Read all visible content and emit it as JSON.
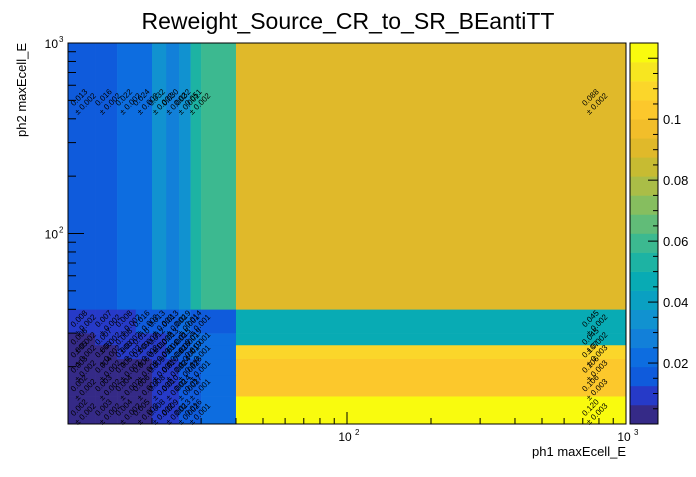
{
  "chart_data": {
    "type": "heatmap",
    "title": "Reweight_Source_CR_to_SR_BEantiTT",
    "xlabel": "ph1 maxEcell_E",
    "ylabel": "ph2 maxEcell_E",
    "x_scale": "log",
    "y_scale": "log",
    "xlim": [
      10,
      1000
    ],
    "ylim": [
      10,
      1000
    ],
    "x_ticks": [
      {
        "value": 100,
        "label": "10",
        "exp": "2"
      },
      {
        "value": 1000,
        "label": "10",
        "exp": "3"
      }
    ],
    "y_ticks": [
      {
        "value": 100,
        "label": "10",
        "exp": "2"
      },
      {
        "value": 1000,
        "label": "10",
        "exp": "3"
      }
    ],
    "zlim": [
      0,
      0.125
    ],
    "z_ticks": [
      {
        "value": 0.02,
        "label": "0.02"
      },
      {
        "value": 0.04,
        "label": "0.04"
      },
      {
        "value": 0.06,
        "label": "0.06"
      },
      {
        "value": 0.08,
        "label": "0.08"
      },
      {
        "value": 0.1,
        "label": "0.1"
      }
    ],
    "x_edges": [
      10,
      12.5,
      15,
      17.5,
      20,
      22.5,
      25,
      27.5,
      30,
      40,
      1000
    ],
    "y_edges": [
      10,
      14,
      18,
      22,
      26,
      30,
      40,
      1000
    ],
    "cells": [
      {
        "xi": 0,
        "yi": 0,
        "v": 0.002,
        "e": 0.002
      },
      {
        "xi": 1,
        "yi": 0,
        "v": 0.003,
        "e": 0.002
      },
      {
        "xi": 2,
        "yi": 0,
        "v": 0.004,
        "e": 0.002
      },
      {
        "xi": 3,
        "yi": 0,
        "v": 0.005,
        "e": 0.002
      },
      {
        "xi": 4,
        "yi": 0,
        "v": 0.008,
        "e": 0.002
      },
      {
        "xi": 5,
        "yi": 0,
        "v": 0.009,
        "e": 0.002
      },
      {
        "xi": 6,
        "yi": 0,
        "v": 0.013,
        "e": 0.002
      },
      {
        "xi": 7,
        "yi": 0,
        "v": 0.016,
        "e": 0.001
      },
      {
        "xi": 8,
        "yi": 0,
        "v": 0.022,
        "e": 0.001
      },
      {
        "xi": 9,
        "yi": 0,
        "v": 0.12,
        "e": 0.003
      },
      {
        "xi": 0,
        "yi": 1,
        "v": 0.002,
        "e": 0.002
      },
      {
        "xi": 1,
        "yi": 1,
        "v": 0.003,
        "e": 0.002
      },
      {
        "xi": 2,
        "yi": 1,
        "v": 0.004,
        "e": 0.002
      },
      {
        "xi": 3,
        "yi": 1,
        "v": 0.006,
        "e": 0.002
      },
      {
        "xi": 4,
        "yi": 1,
        "v": 0.008,
        "e": 0.002
      },
      {
        "xi": 5,
        "yi": 1,
        "v": 0.01,
        "e": 0.002
      },
      {
        "xi": 6,
        "yi": 1,
        "v": 0.014,
        "e": 0.002
      },
      {
        "xi": 7,
        "yi": 1,
        "v": 0.017,
        "e": 0.001
      },
      {
        "xi": 8,
        "yi": 1,
        "v": 0.022,
        "e": 0.001
      },
      {
        "xi": 9,
        "yi": 1,
        "v": 0.106,
        "e": 0.003
      },
      {
        "xi": 0,
        "yi": 2,
        "v": 0.003,
        "e": 0.002
      },
      {
        "xi": 1,
        "yi": 2,
        "v": 0.004,
        "e": 0.002
      },
      {
        "xi": 2,
        "yi": 2,
        "v": 0.005,
        "e": 0.002
      },
      {
        "xi": 3,
        "yi": 2,
        "v": 0.006,
        "e": 0.002
      },
      {
        "xi": 4,
        "yi": 2,
        "v": 0.009,
        "e": 0.002
      },
      {
        "xi": 5,
        "yi": 2,
        "v": 0.01,
        "e": 0.002
      },
      {
        "xi": 6,
        "yi": 2,
        "v": 0.014,
        "e": 0.002
      },
      {
        "xi": 7,
        "yi": 2,
        "v": 0.018,
        "e": 0.001
      },
      {
        "xi": 8,
        "yi": 2,
        "v": 0.02,
        "e": 0.001
      },
      {
        "xi": 9,
        "yi": 2,
        "v": 0.106,
        "e": 0.003
      },
      {
        "xi": 0,
        "yi": 3,
        "v": 0.005,
        "e": 0.002
      },
      {
        "xi": 1,
        "yi": 3,
        "v": 0.006,
        "e": 0.002
      },
      {
        "xi": 2,
        "yi": 3,
        "v": 0.008,
        "e": 0.002
      },
      {
        "xi": 3,
        "yi": 3,
        "v": 0.009,
        "e": 0.002
      },
      {
        "xi": 4,
        "yi": 3,
        "v": 0.011,
        "e": 0.002
      },
      {
        "xi": 5,
        "yi": 3,
        "v": 0.014,
        "e": 0.002
      },
      {
        "xi": 6,
        "yi": 3,
        "v": 0.016,
        "e": 0.001
      },
      {
        "xi": 7,
        "yi": 3,
        "v": 0.019,
        "e": 0.001
      },
      {
        "xi": 8,
        "yi": 3,
        "v": 0.022,
        "e": 0.001
      },
      {
        "xi": 9,
        "yi": 3,
        "v": 0.107,
        "e": 0.003
      },
      {
        "xi": 0,
        "yi": 4,
        "v": 0.006,
        "e": 0.002
      },
      {
        "xi": 1,
        "yi": 4,
        "v": 0.007,
        "e": 0.002
      },
      {
        "xi": 2,
        "yi": 4,
        "v": 0.008,
        "e": 0.002
      },
      {
        "xi": 3,
        "yi": 4,
        "v": 0.01,
        "e": 0.002
      },
      {
        "xi": 4,
        "yi": 4,
        "v": 0.012,
        "e": 0.002
      },
      {
        "xi": 5,
        "yi": 4,
        "v": 0.013,
        "e": 0.002
      },
      {
        "xi": 6,
        "yi": 4,
        "v": 0.015,
        "e": 0.001
      },
      {
        "xi": 7,
        "yi": 4,
        "v": 0.019,
        "e": 0.001
      },
      {
        "xi": 8,
        "yi": 4,
        "v": 0.022,
        "e": 0.001
      },
      {
        "xi": 9,
        "yi": 4,
        "v": 0.045,
        "e": 0.002
      },
      {
        "xi": 0,
        "yi": 5,
        "v": 0.008,
        "e": 0.002
      },
      {
        "xi": 1,
        "yi": 5,
        "v": 0.007,
        "e": 0.002
      },
      {
        "xi": 2,
        "yi": 5,
        "v": 0.008,
        "e": 0.002
      },
      {
        "xi": 3,
        "yi": 5,
        "v": 0.016,
        "e": 0.002
      },
      {
        "xi": 4,
        "yi": 5,
        "v": 0.013,
        "e": 0.002
      },
      {
        "xi": 5,
        "yi": 5,
        "v": 0.013,
        "e": 0.002
      },
      {
        "xi": 6,
        "yi": 5,
        "v": 0.019,
        "e": 0.001
      },
      {
        "xi": 7,
        "yi": 5,
        "v": 0.014,
        "e": 0.001
      },
      {
        "xi": 8,
        "yi": 5,
        "v": 0.014,
        "e": 0.001
      },
      {
        "xi": 9,
        "yi": 5,
        "v": 0.045,
        "e": 0.002
      },
      {
        "xi": 0,
        "yi": 6,
        "v": 0.013,
        "e": 0.002
      },
      {
        "xi": 1,
        "yi": 6,
        "v": 0.016,
        "e": 0.002
      },
      {
        "xi": 2,
        "yi": 6,
        "v": 0.022,
        "e": 0.002
      },
      {
        "xi": 3,
        "yi": 6,
        "v": 0.024,
        "e": 0.002
      },
      {
        "xi": 4,
        "yi": 6,
        "v": 0.032,
        "e": 0.002
      },
      {
        "xi": 5,
        "yi": 6,
        "v": 0.03,
        "e": 0.002
      },
      {
        "xi": 6,
        "yi": 6,
        "v": 0.032,
        "e": 0.001
      },
      {
        "xi": 7,
        "yi": 6,
        "v": 0.051,
        "e": 0.002
      },
      {
        "xi": 8,
        "yi": 6,
        "v": 0.059,
        "e": 0.001
      },
      {
        "xi": 9,
        "yi": 6,
        "v": 0.088,
        "e": 0.002
      }
    ],
    "labeled_x": [
      0,
      1,
      2,
      3,
      4,
      5,
      6,
      7,
      9
    ],
    "palette": [
      "#352a87",
      "#263ac8",
      "#0f5bdc",
      "#0d6de0",
      "#1280d9",
      "#1192d0",
      "#0aa0c2",
      "#08abb4",
      "#1db3a3",
      "#3cb990",
      "#61bc78",
      "#86be5f",
      "#aabd47",
      "#c7bb32",
      "#e0b92a",
      "#f2be2a",
      "#fcc82c",
      "#fbd62a",
      "#f7e620",
      "#f9fb0e"
    ]
  }
}
